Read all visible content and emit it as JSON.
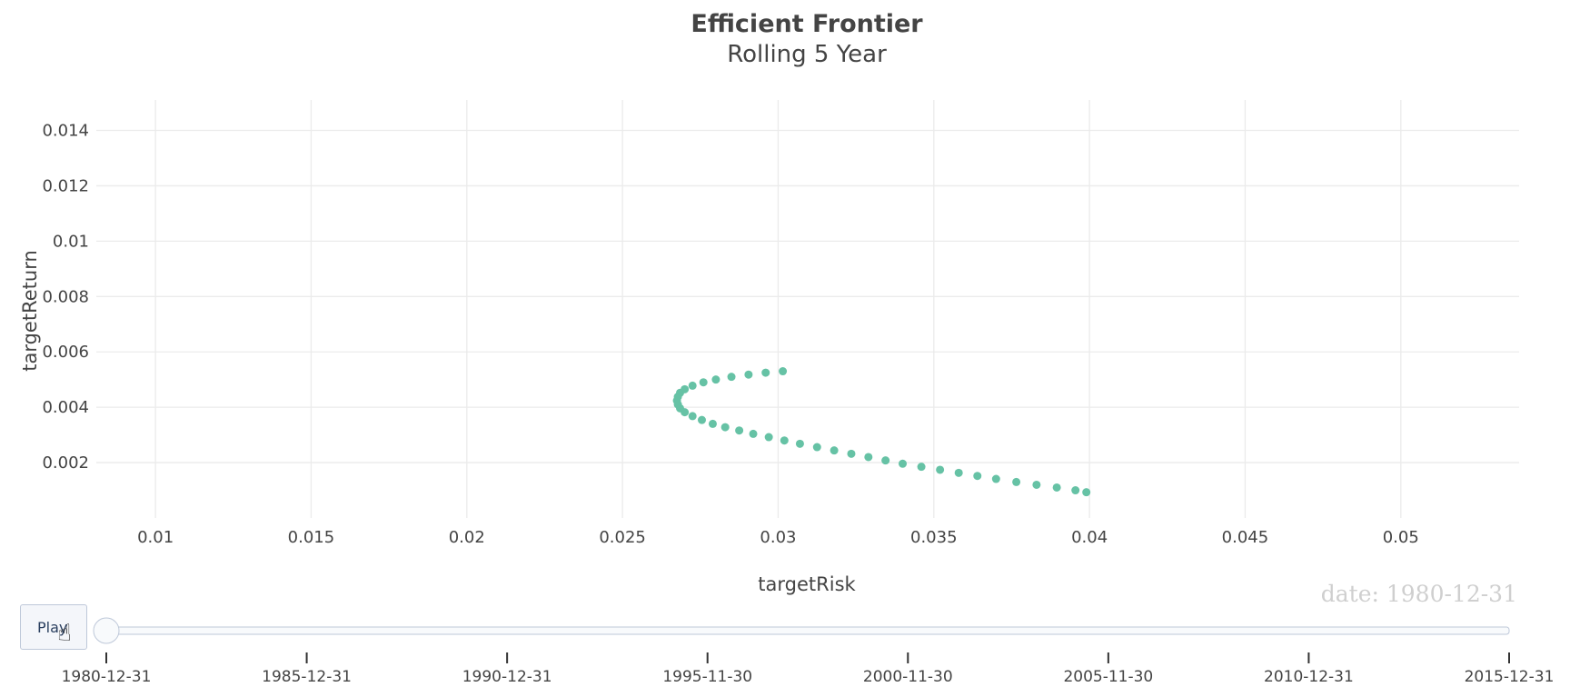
{
  "title": "Efficient Frontier",
  "subtitle": "Rolling 5 Year",
  "xaxis": {
    "title": "targetRisk",
    "range": [
      0.0081,
      0.0538
    ],
    "ticks": [
      "0.01",
      "0.015",
      "0.02",
      "0.025",
      "0.03",
      "0.035",
      "0.04",
      "0.045",
      "0.05"
    ],
    "tick_values": [
      0.01,
      0.015,
      0.02,
      0.025,
      0.03,
      0.035,
      0.04,
      0.045,
      0.05
    ]
  },
  "yaxis": {
    "title": "targetReturn",
    "range": [
      0.0,
      0.0151
    ],
    "ticks": [
      "0.002",
      "0.004",
      "0.006",
      "0.008",
      "0.01",
      "0.012",
      "0.014"
    ],
    "tick_values": [
      0.002,
      0.004,
      0.006,
      0.008,
      0.01,
      0.012,
      0.014
    ]
  },
  "colors": {
    "marker": "#66c2a5",
    "grid": "#ebebeb",
    "text": "#444444"
  },
  "chart_data": {
    "type": "scatter",
    "title": "Efficient Frontier",
    "subtitle": "Rolling 5 Year",
    "xlabel": "targetRisk",
    "ylabel": "targetReturn",
    "xlim": [
      0.0081,
      0.0538
    ],
    "ylim": [
      0.0,
      0.0151
    ],
    "grid": true,
    "series": [
      {
        "marker_color": "#66c2a5",
        "points": [
          [
            0.03015,
            0.0053
          ],
          [
            0.0296,
            0.00525
          ],
          [
            0.02905,
            0.00518
          ],
          [
            0.0285,
            0.0051
          ],
          [
            0.028,
            0.005
          ],
          [
            0.0276,
            0.0049
          ],
          [
            0.02725,
            0.00478
          ],
          [
            0.027,
            0.00465
          ],
          [
            0.02685,
            0.00452
          ],
          [
            0.02678,
            0.00438
          ],
          [
            0.02675,
            0.00424
          ],
          [
            0.02678,
            0.0041
          ],
          [
            0.02685,
            0.00396
          ],
          [
            0.027,
            0.00382
          ],
          [
            0.02725,
            0.00368
          ],
          [
            0.02755,
            0.00354
          ],
          [
            0.0279,
            0.0034
          ],
          [
            0.0283,
            0.00328
          ],
          [
            0.02875,
            0.00316
          ],
          [
            0.0292,
            0.00304
          ],
          [
            0.0297,
            0.00292
          ],
          [
            0.0302,
            0.0028
          ],
          [
            0.0307,
            0.00268
          ],
          [
            0.03125,
            0.00256
          ],
          [
            0.0318,
            0.00244
          ],
          [
            0.03235,
            0.00232
          ],
          [
            0.0329,
            0.0022
          ],
          [
            0.03345,
            0.00208
          ],
          [
            0.034,
            0.00196
          ],
          [
            0.0346,
            0.00185
          ],
          [
            0.0352,
            0.00174
          ],
          [
            0.0358,
            0.00163
          ],
          [
            0.0364,
            0.00152
          ],
          [
            0.037,
            0.00141
          ],
          [
            0.03765,
            0.0013
          ],
          [
            0.0383,
            0.0012
          ],
          [
            0.03895,
            0.0011
          ],
          [
            0.03955,
            0.001
          ],
          [
            0.0399,
            0.00093
          ]
        ]
      }
    ]
  },
  "animation": {
    "play_label": "Play",
    "current_date": "date: 1980-12-31",
    "slider_position": 0,
    "slider_ticks": [
      "1980-12-31",
      "1985-12-31",
      "1990-12-31",
      "1995-11-30",
      "2000-11-30",
      "2005-11-30",
      "2010-12-31",
      "2015-12-31"
    ],
    "cursor_icon": "hand-pointer-icon"
  }
}
